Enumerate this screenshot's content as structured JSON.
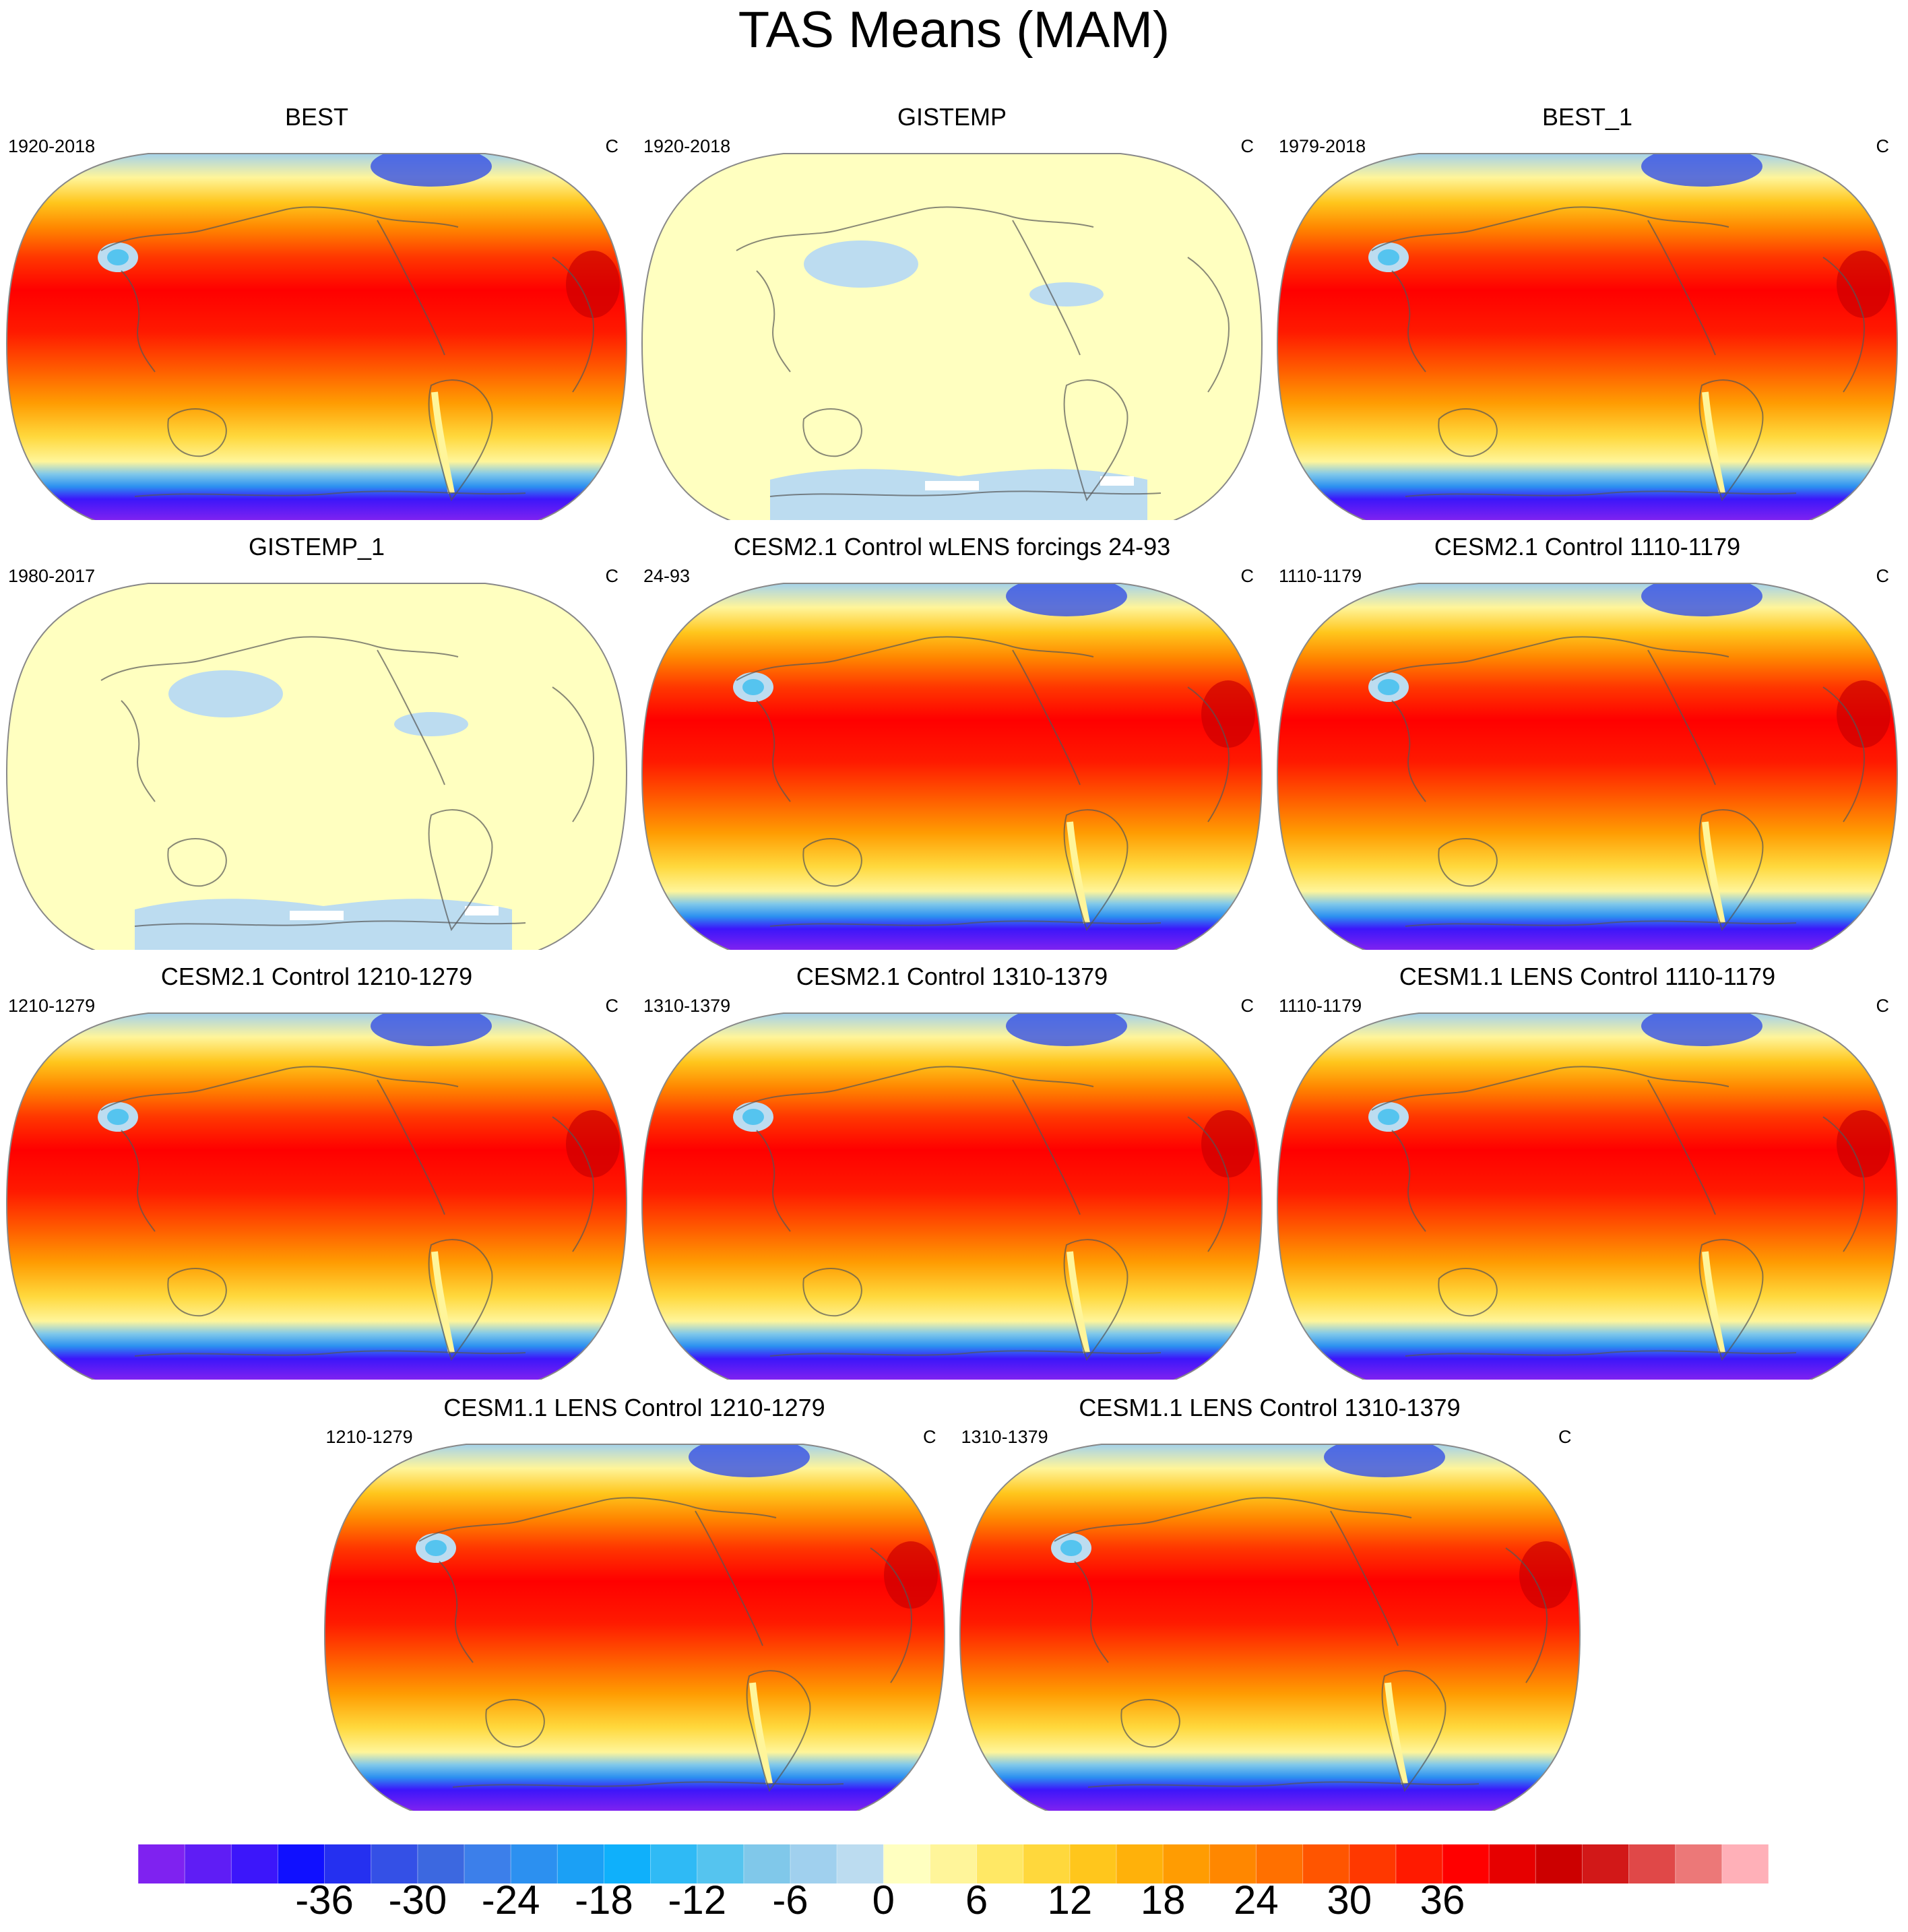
{
  "title": "TAS Means (MAM)",
  "panels": [
    {
      "title": "BEST",
      "left_label": "1920-2018",
      "right_label": "C",
      "style": "warm",
      "col": 0,
      "row": 0
    },
    {
      "title": "GISTEMP",
      "left_label": "1920-2018",
      "right_label": "C",
      "style": "pale",
      "col": 1,
      "row": 0
    },
    {
      "title": "BEST_1",
      "left_label": "1979-2018",
      "right_label": "C",
      "style": "warm",
      "col": 2,
      "row": 0
    },
    {
      "title": "GISTEMP_1",
      "left_label": "1980-2017",
      "right_label": "C",
      "style": "pale",
      "col": 0,
      "row": 1
    },
    {
      "title": "CESM2.1 Control wLENS forcings 24-93",
      "left_label": "24-93",
      "right_label": "C",
      "style": "warm",
      "col": 1,
      "row": 1
    },
    {
      "title": "CESM2.1 Control 1110-1179",
      "left_label": "1110-1179",
      "right_label": "C",
      "style": "warm",
      "col": 2,
      "row": 1
    },
    {
      "title": "CESM2.1 Control 1210-1279",
      "left_label": "1210-1279",
      "right_label": "C",
      "style": "warm",
      "col": 0,
      "row": 2
    },
    {
      "title": "CESM2.1 Control 1310-1379",
      "left_label": "1310-1379",
      "right_label": "C",
      "style": "warm",
      "col": 1,
      "row": 2
    },
    {
      "title": "CESM1.1 LENS Control 1110-1179",
      "left_label": "1110-1179",
      "right_label": "C",
      "style": "warm",
      "col": 2,
      "row": 2
    },
    {
      "title": "CESM1.1 LENS Control 1210-1279",
      "left_label": "1210-1279",
      "right_label": "C",
      "style": "warm",
      "col": 0.5,
      "row": 3
    },
    {
      "title": "CESM1.1 LENS Control 1310-1379",
      "left_label": "1310-1379",
      "right_label": "C",
      "style": "warm",
      "col": 1.5,
      "row": 3
    }
  ],
  "colorbar": {
    "colors": [
      "#7f22f0",
      "#5f1df5",
      "#3c16fa",
      "#1010ff",
      "#2530f0",
      "#3450e6",
      "#3c68e0",
      "#3c7fea",
      "#2c90f0",
      "#1ba0f5",
      "#0fb0fb",
      "#2fbaf5",
      "#55c4ef",
      "#80c8ea",
      "#a0d0ee",
      "#bcdcf0",
      "#ffffc0",
      "#fff59a",
      "#ffe865",
      "#ffd83c",
      "#ffc61c",
      "#ffb10a",
      "#ff9c02",
      "#ff8700",
      "#ff7000",
      "#ff5500",
      "#ff3800",
      "#ff1a00",
      "#ff0000",
      "#e60000",
      "#cc0000",
      "#d21818",
      "#e04848",
      "#ec7878",
      "#ffb0b8"
    ],
    "labels": [
      "-36",
      "-30",
      "-24",
      "-18",
      "-12",
      "-6",
      "0",
      "6",
      "12",
      "18",
      "24",
      "30",
      "36"
    ]
  }
}
